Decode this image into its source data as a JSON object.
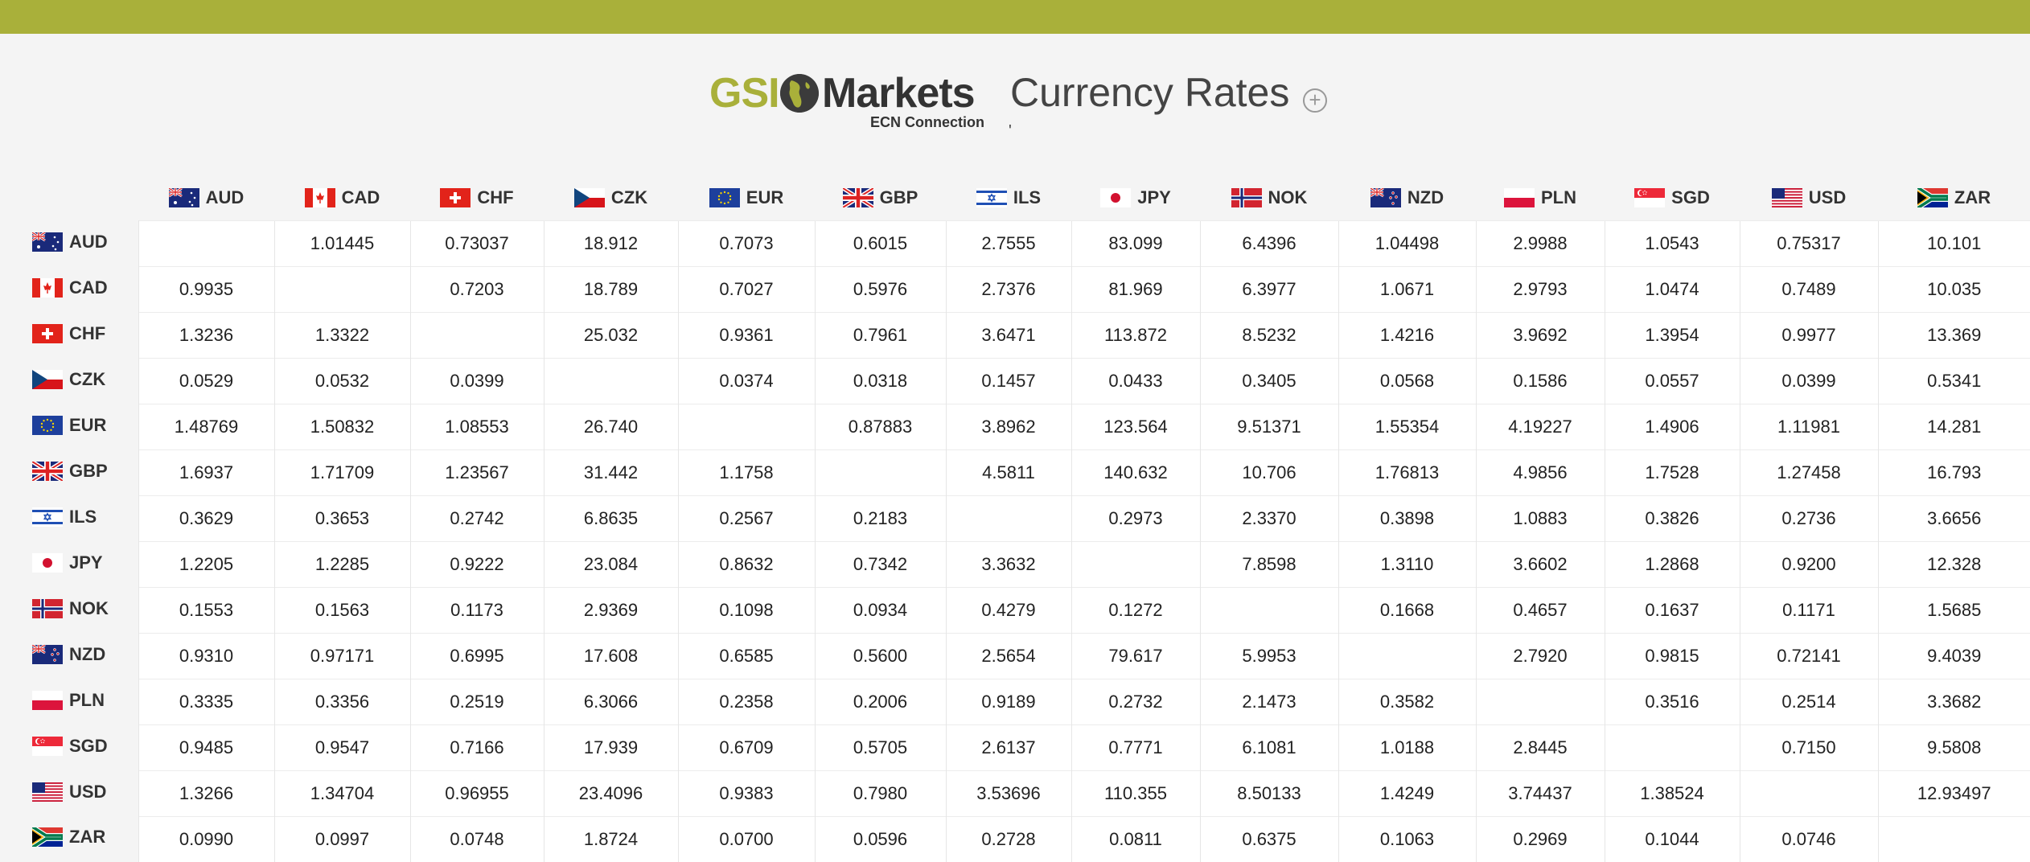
{
  "header": {
    "logo_gsi": "GSI",
    "logo_markets": "Markets",
    "logo_tagline": "ECN Connection",
    "title": "Currency Rates",
    "add_icon": "plus-circle-icon",
    "tick_mark": "'"
  },
  "colors": {
    "brand": "#a9b03a",
    "topbar": "#a9b03a"
  },
  "currencies": [
    "AUD",
    "CAD",
    "CHF",
    "CZK",
    "EUR",
    "GBP",
    "ILS",
    "JPY",
    "NOK",
    "NZD",
    "PLN",
    "SGD",
    "USD",
    "ZAR"
  ],
  "rows": [
    {
      "code": "AUD",
      "values": [
        "",
        "1.01445",
        "0.73037",
        "18.912",
        "0.7073",
        "0.6015",
        "2.7555",
        "83.099",
        "6.4396",
        "1.04498",
        "2.9988",
        "1.0543",
        "0.75317",
        "10.101"
      ]
    },
    {
      "code": "CAD",
      "values": [
        "0.9935",
        "",
        "0.7203",
        "18.789",
        "0.7027",
        "0.5976",
        "2.7376",
        "81.969",
        "6.3977",
        "1.0671",
        "2.9793",
        "1.0474",
        "0.7489",
        "10.035"
      ]
    },
    {
      "code": "CHF",
      "values": [
        "1.3236",
        "1.3322",
        "",
        "25.032",
        "0.9361",
        "0.7961",
        "3.6471",
        "113.872",
        "8.5232",
        "1.4216",
        "3.9692",
        "1.3954",
        "0.9977",
        "13.369"
      ]
    },
    {
      "code": "CZK",
      "values": [
        "0.0529",
        "0.0532",
        "0.0399",
        "",
        "0.0374",
        "0.0318",
        "0.1457",
        "0.0433",
        "0.3405",
        "0.0568",
        "0.1586",
        "0.0557",
        "0.0399",
        "0.5341"
      ]
    },
    {
      "code": "EUR",
      "values": [
        "1.48769",
        "1.50832",
        "1.08553",
        "26.740",
        "",
        "0.87883",
        "3.8962",
        "123.564",
        "9.51371",
        "1.55354",
        "4.19227",
        "1.4906",
        "1.11981",
        "14.281"
      ]
    },
    {
      "code": "GBP",
      "values": [
        "1.6937",
        "1.71709",
        "1.23567",
        "31.442",
        "1.1758",
        "",
        "4.5811",
        "140.632",
        "10.706",
        "1.76813",
        "4.9856",
        "1.7528",
        "1.27458",
        "16.793"
      ]
    },
    {
      "code": "ILS",
      "values": [
        "0.3629",
        "0.3653",
        "0.2742",
        "6.8635",
        "0.2567",
        "0.2183",
        "",
        "0.2973",
        "2.3370",
        "0.3898",
        "1.0883",
        "0.3826",
        "0.2736",
        "3.6656"
      ]
    },
    {
      "code": "JPY",
      "values": [
        "1.2205",
        "1.2285",
        "0.9222",
        "23.084",
        "0.8632",
        "0.7342",
        "3.3632",
        "",
        "7.8598",
        "1.3110",
        "3.6602",
        "1.2868",
        "0.9200",
        "12.328"
      ]
    },
    {
      "code": "NOK",
      "values": [
        "0.1553",
        "0.1563",
        "0.1173",
        "2.9369",
        "0.1098",
        "0.0934",
        "0.4279",
        "0.1272",
        "",
        "0.1668",
        "0.4657",
        "0.1637",
        "0.1171",
        "1.5685"
      ]
    },
    {
      "code": "NZD",
      "values": [
        "0.9310",
        "0.97171",
        "0.6995",
        "17.608",
        "0.6585",
        "0.5600",
        "2.5654",
        "79.617",
        "5.9953",
        "",
        "2.7920",
        "0.9815",
        "0.72141",
        "9.4039"
      ]
    },
    {
      "code": "PLN",
      "values": [
        "0.3335",
        "0.3356",
        "0.2519",
        "6.3066",
        "0.2358",
        "0.2006",
        "0.9189",
        "0.2732",
        "2.1473",
        "0.3582",
        "",
        "0.3516",
        "0.2514",
        "3.3682"
      ]
    },
    {
      "code": "SGD",
      "values": [
        "0.9485",
        "0.9547",
        "0.7166",
        "17.939",
        "0.6709",
        "0.5705",
        "2.6137",
        "0.7771",
        "6.1081",
        "1.0188",
        "2.8445",
        "",
        "0.7150",
        "9.5808"
      ]
    },
    {
      "code": "USD",
      "values": [
        "1.3266",
        "1.34704",
        "0.96955",
        "23.4096",
        "0.9383",
        "0.7980",
        "3.53696",
        "110.355",
        "8.50133",
        "1.4249",
        "3.74437",
        "1.38524",
        "",
        "12.93497"
      ]
    },
    {
      "code": "ZAR",
      "values": [
        "0.0990",
        "0.0997",
        "0.0748",
        "1.8724",
        "0.0700",
        "0.0596",
        "0.2728",
        "0.0811",
        "0.6375",
        "0.1063",
        "0.2969",
        "0.1044",
        "0.0746",
        ""
      ]
    }
  ]
}
